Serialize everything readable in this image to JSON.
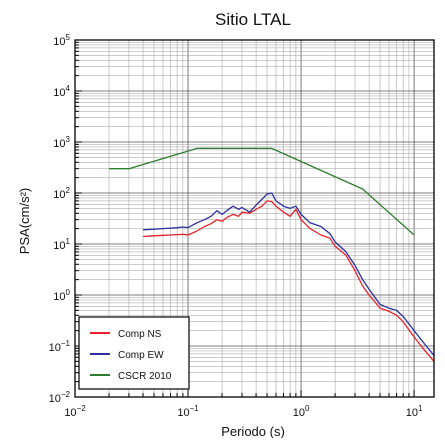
{
  "chart_data": {
    "type": "line",
    "title": "Sitio LTAL",
    "xlabel": "Periodo (s)",
    "ylabel": "PSA(cm/s²)",
    "xscale": "log",
    "yscale": "log",
    "xlim": [
      0.01,
      15
    ],
    "ylim": [
      0.01,
      100000
    ],
    "grid": true,
    "legend_position": "bottom-left",
    "x_ticks": [
      {
        "value": 0.01,
        "base": "10",
        "exp": "−2"
      },
      {
        "value": 0.1,
        "base": "10",
        "exp": "−1"
      },
      {
        "value": 1,
        "base": "10",
        "exp": "0"
      },
      {
        "value": 10,
        "base": "10",
        "exp": "1"
      }
    ],
    "y_ticks": [
      {
        "value": 0.01,
        "base": "10",
        "exp": "−2"
      },
      {
        "value": 0.1,
        "base": "10",
        "exp": "−1"
      },
      {
        "value": 1,
        "base": "10",
        "exp": "0"
      },
      {
        "value": 10,
        "base": "10",
        "exp": "1"
      },
      {
        "value": 100,
        "base": "10",
        "exp": "2"
      },
      {
        "value": 1000,
        "base": "10",
        "exp": "3"
      },
      {
        "value": 10000,
        "base": "10",
        "exp": "4"
      },
      {
        "value": 100000,
        "base": "10",
        "exp": "5"
      }
    ],
    "series": [
      {
        "name": "Comp NS",
        "color": "#e8222b",
        "points": [
          [
            0.04,
            14
          ],
          [
            0.05,
            14.5
          ],
          [
            0.06,
            14.8
          ],
          [
            0.07,
            15
          ],
          [
            0.08,
            15.3
          ],
          [
            0.09,
            15.5
          ],
          [
            0.1,
            15
          ],
          [
            0.12,
            18
          ],
          [
            0.14,
            22
          ],
          [
            0.16,
            25
          ],
          [
            0.18,
            30
          ],
          [
            0.2,
            28
          ],
          [
            0.22,
            33
          ],
          [
            0.25,
            38
          ],
          [
            0.28,
            35
          ],
          [
            0.3,
            42
          ],
          [
            0.35,
            40
          ],
          [
            0.4,
            48
          ],
          [
            0.45,
            55
          ],
          [
            0.5,
            70
          ],
          [
            0.55,
            68
          ],
          [
            0.6,
            55
          ],
          [
            0.7,
            42
          ],
          [
            0.8,
            35
          ],
          [
            0.9,
            48
          ],
          [
            1.0,
            30
          ],
          [
            1.2,
            20
          ],
          [
            1.5,
            15
          ],
          [
            1.8,
            13
          ],
          [
            2.0,
            9
          ],
          [
            2.5,
            6
          ],
          [
            3.0,
            3
          ],
          [
            3.5,
            1.5
          ],
          [
            4.0,
            1.0
          ],
          [
            5.0,
            0.55
          ],
          [
            6.0,
            0.48
          ],
          [
            7.0,
            0.4
          ],
          [
            8.0,
            0.3
          ],
          [
            10.0,
            0.15
          ],
          [
            12.0,
            0.09
          ],
          [
            15.0,
            0.05
          ]
        ]
      },
      {
        "name": "Comp EW",
        "color": "#2b2fa0",
        "points": [
          [
            0.04,
            19
          ],
          [
            0.05,
            19.5
          ],
          [
            0.06,
            20
          ],
          [
            0.07,
            20.5
          ],
          [
            0.08,
            21
          ],
          [
            0.09,
            21.5
          ],
          [
            0.1,
            21
          ],
          [
            0.12,
            26
          ],
          [
            0.14,
            30
          ],
          [
            0.16,
            35
          ],
          [
            0.18,
            45
          ],
          [
            0.2,
            38
          ],
          [
            0.22,
            45
          ],
          [
            0.25,
            55
          ],
          [
            0.28,
            48
          ],
          [
            0.3,
            52
          ],
          [
            0.35,
            42
          ],
          [
            0.4,
            58
          ],
          [
            0.45,
            75
          ],
          [
            0.5,
            95
          ],
          [
            0.55,
            100
          ],
          [
            0.6,
            70
          ],
          [
            0.7,
            55
          ],
          [
            0.8,
            50
          ],
          [
            0.9,
            55
          ],
          [
            1.0,
            38
          ],
          [
            1.2,
            26
          ],
          [
            1.5,
            22
          ],
          [
            1.8,
            16
          ],
          [
            2.0,
            11
          ],
          [
            2.5,
            7
          ],
          [
            3.0,
            3.8
          ],
          [
            3.5,
            2.0
          ],
          [
            4.0,
            1.3
          ],
          [
            5.0,
            0.65
          ],
          [
            6.0,
            0.55
          ],
          [
            7.0,
            0.5
          ],
          [
            8.0,
            0.38
          ],
          [
            10.0,
            0.2
          ],
          [
            12.0,
            0.12
          ],
          [
            15.0,
            0.065
          ]
        ]
      },
      {
        "name": "CSCR 2010",
        "color": "#2e7d2e",
        "points": [
          [
            0.02,
            300
          ],
          [
            0.03,
            300
          ],
          [
            0.12,
            750
          ],
          [
            0.55,
            750
          ],
          [
            3.5,
            120
          ],
          [
            10.0,
            15
          ]
        ]
      }
    ]
  }
}
